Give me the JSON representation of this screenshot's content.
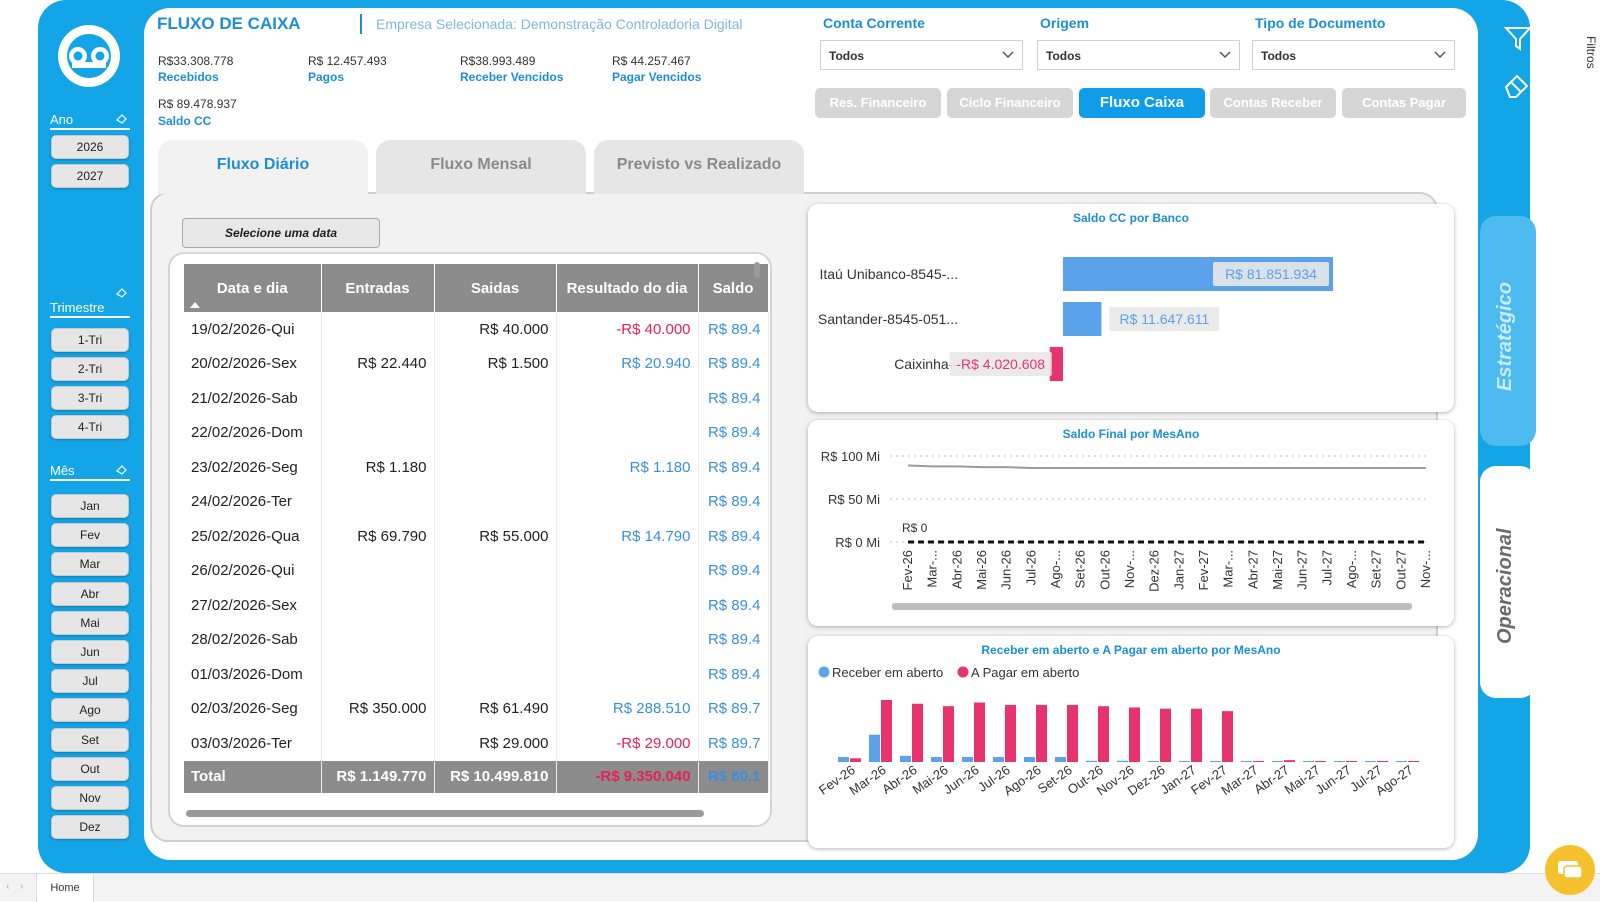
{
  "header": {
    "title": "FLUXO DE CAIXA",
    "company": "Empresa Selecionada: Demonstração Controladoria Digital"
  },
  "kpis": [
    {
      "value": "R$33.308.778",
      "label": "Recebidos"
    },
    {
      "value": "R$ 12.457.493",
      "label": "Pagos"
    },
    {
      "value": "R$38.993.489",
      "label": "Receber Vencidos"
    },
    {
      "value": "R$ 44.257.467",
      "label": "Pagar Vencidos"
    },
    {
      "value": "R$ 89.478.937",
      "label": "Saldo CC"
    }
  ],
  "filters": [
    {
      "label": "Conta Corrente",
      "value": "Todos"
    },
    {
      "label": "Origem",
      "value": "Todos"
    },
    {
      "label": "Tipo de Documento",
      "value": "Todos"
    }
  ],
  "nav_buttons": [
    "Res. Financeiro",
    "Ciclo Financeiro",
    "Fluxo Caixa",
    "Contas Receber",
    "Contas Pagar"
  ],
  "tabs": [
    "Fluxo Diário",
    "Fluxo Mensal",
    "Previsto vs Realizado"
  ],
  "sidebar": {
    "ano_label": "Ano",
    "anos": [
      "2026",
      "2027"
    ],
    "trimestre_label": "Trimestre",
    "trimestres": [
      "1-Tri",
      "2-Tri",
      "3-Tri",
      "4-Tri"
    ],
    "mes_label": "Mês",
    "meses": [
      "Jan",
      "Fev",
      "Mar",
      "Abr",
      "Mai",
      "Jun",
      "Jul",
      "Ago",
      "Set",
      "Out",
      "Nov",
      "Dez"
    ]
  },
  "date_button": "Selecione uma data",
  "table": {
    "headers": [
      "Data e dia",
      "Entradas",
      "Saidas",
      "Resultado do dia",
      "Saldo"
    ],
    "rows": [
      [
        "19/02/2026-Qui",
        "",
        "R$ 40.000",
        "-R$ 40.000",
        "R$ 89.4"
      ],
      [
        "20/02/2026-Sex",
        "R$ 22.440",
        "R$ 1.500",
        "R$ 20.940",
        "R$ 89.4"
      ],
      [
        "21/02/2026-Sab",
        "",
        "",
        "",
        "R$ 89.4"
      ],
      [
        "22/02/2026-Dom",
        "",
        "",
        "",
        "R$ 89.4"
      ],
      [
        "23/02/2026-Seg",
        "R$ 1.180",
        "",
        "R$ 1.180",
        "R$ 89.4"
      ],
      [
        "24/02/2026-Ter",
        "",
        "",
        "",
        "R$ 89.4"
      ],
      [
        "25/02/2026-Qua",
        "R$ 69.790",
        "R$ 55.000",
        "R$ 14.790",
        "R$ 89.4"
      ],
      [
        "26/02/2026-Qui",
        "",
        "",
        "",
        "R$ 89.4"
      ],
      [
        "27/02/2026-Sex",
        "",
        "",
        "",
        "R$ 89.4"
      ],
      [
        "28/02/2026-Sab",
        "",
        "",
        "",
        "R$ 89.4"
      ],
      [
        "01/03/2026-Dom",
        "",
        "",
        "",
        "R$ 89.4"
      ],
      [
        "02/03/2026-Seg",
        "R$ 350.000",
        "R$ 61.490",
        "R$ 288.510",
        "R$ 89.7"
      ],
      [
        "03/03/2026-Ter",
        "",
        "R$ 29.000",
        "-R$ 29.000",
        "R$ 89.7"
      ]
    ],
    "total": [
      "Total",
      "R$ 1.149.770",
      "R$ 10.499.810",
      "-R$ 9.350.040",
      "R$ 80.1"
    ]
  },
  "colors": {
    "accent": "#13a5e6",
    "blue": "#3a8fdc",
    "red": "#e5215a",
    "bar_blue": "#5aa2ea",
    "bar_pink": "#e8346d"
  },
  "chart_data": [
    {
      "type": "bar",
      "title": "Saldo CC por Banco",
      "orientation": "horizontal",
      "categories": [
        "Itaú Unibanco-8545-...",
        "Santander-8545-051...",
        "Caixinha--"
      ],
      "values": [
        81851934,
        11647611,
        -4020608
      ],
      "labels": [
        "R$ 81.851.934",
        "R$ 11.647.611",
        "-R$ 4.020.608"
      ]
    },
    {
      "type": "line",
      "title": "Saldo Final por MesAno",
      "x": [
        "Fev-26",
        "Mar-...",
        "Abr-26",
        "Mai-26",
        "Jun-26",
        "Jul-26",
        "Ago-...",
        "Set-26",
        "Out-26",
        "Nov-...",
        "Dez-26",
        "Jan-27",
        "Fev-27",
        "Mar-...",
        "Abr-27",
        "Mai-27",
        "Jun-27",
        "Jul-27",
        "Ago-...",
        "Set-27",
        "Out-27",
        "Nov-..."
      ],
      "series": [
        {
          "values": [
            89,
            88,
            88,
            87,
            87,
            86,
            86,
            86,
            86,
            86,
            86,
            86,
            86,
            86,
            86,
            86,
            86,
            86,
            86,
            86,
            86,
            86
          ]
        },
        {
          "values": [
            0,
            0,
            0,
            0,
            0,
            0,
            0,
            0,
            0,
            0,
            0,
            0,
            0,
            0,
            0,
            0,
            0,
            0,
            0,
            0,
            0,
            0
          ]
        }
      ],
      "yticks": [
        "R$ 100 Mi",
        "R$ 50 Mi",
        "R$ 0 Mi"
      ],
      "ylim": [
        0,
        100
      ],
      "annotation": "R$ 0"
    },
    {
      "type": "bar",
      "title": "Receber em aberto e A Pagar em aberto por MesAno",
      "legend": "top-left",
      "categories": [
        "Fev-26",
        "Mar-26",
        "Abr-26",
        "Mai-26",
        "Jun-26",
        "Jul-26",
        "Ago-26",
        "Set-26",
        "Out-26",
        "Nov-26",
        "Dez-26",
        "Jan-27",
        "Fev-27",
        "Mar-27",
        "Abr-27",
        "Mai-27",
        "Jun-27",
        "Jul-27",
        "Ago-27"
      ],
      "series": [
        {
          "name": "Receber em aberto",
          "values": [
            0.4,
            2.2,
            0.5,
            0.4,
            0.4,
            0.4,
            0.4,
            0.4,
            0.1,
            0.1,
            0,
            0,
            0,
            0,
            0,
            0,
            0,
            0,
            0
          ]
        },
        {
          "name": "A Pagar em aberto",
          "values": [
            0.3,
            5,
            4.7,
            4.5,
            4.8,
            4.6,
            4.6,
            4.6,
            4.5,
            4.4,
            4.3,
            4.3,
            4.1,
            0.05,
            0.15,
            0.05,
            0.05,
            0.05,
            0.05
          ]
        }
      ]
    }
  ],
  "side_tabs": [
    "Estratégico",
    "Operacional"
  ],
  "right_panel": "Filtros",
  "bottom_tab": "Home"
}
